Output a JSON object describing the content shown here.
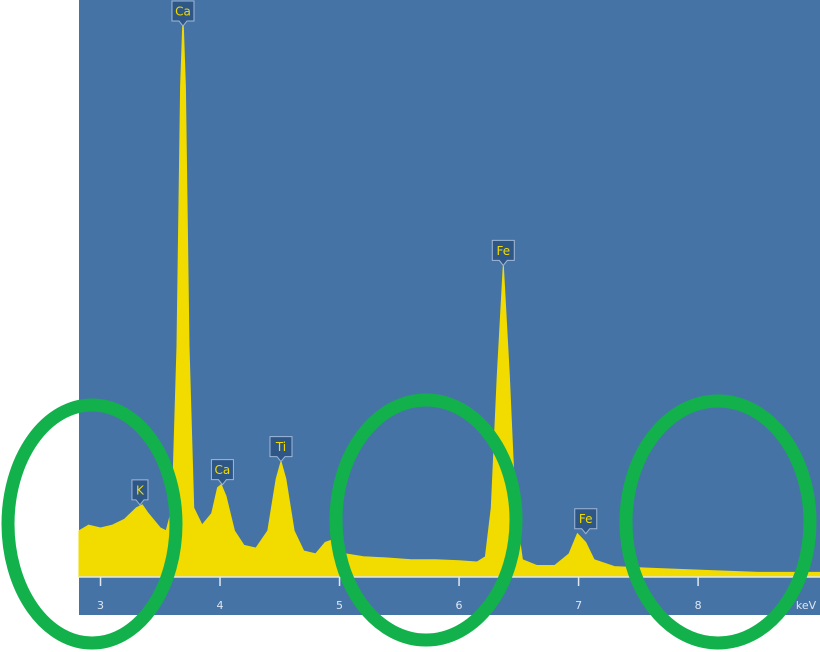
{
  "chart_data": {
    "type": "spectrum",
    "x_label": "keV",
    "xlim": [
      2.82,
      9.02
    ],
    "ylim": [
      0,
      100
    ],
    "xticks": [
      3,
      4,
      5,
      6,
      7,
      8
    ],
    "color": "#f2dc00",
    "background": "#4673a6",
    "x": [
      2.82,
      2.9,
      3.0,
      3.1,
      3.2,
      3.3,
      3.35,
      3.4,
      3.5,
      3.55,
      3.6,
      3.64,
      3.67,
      3.69,
      3.71,
      3.74,
      3.78,
      3.85,
      3.93,
      3.98,
      4.01,
      4.05,
      4.12,
      4.2,
      4.3,
      4.4,
      4.47,
      4.51,
      4.55,
      4.62,
      4.7,
      4.8,
      4.88,
      4.95,
      5.05,
      5.2,
      5.4,
      5.6,
      5.8,
      6.0,
      6.15,
      6.22,
      6.27,
      6.32,
      6.37,
      6.42,
      6.47,
      6.53,
      6.65,
      6.8,
      6.92,
      6.99,
      7.06,
      7.13,
      7.3,
      7.6,
      8.0,
      8.5,
      9.02
    ],
    "values": [
      8,
      9,
      8.5,
      9,
      10,
      12,
      12.5,
      11,
      8.5,
      8,
      12,
      40,
      85,
      97,
      85,
      40,
      12,
      9,
      11,
      15.5,
      16,
      14,
      8,
      5.5,
      5,
      8,
      17,
      20,
      17,
      8,
      4.5,
      4,
      6,
      6.5,
      4,
      3.5,
      3.3,
      3,
      3,
      2.8,
      2.6,
      3.5,
      12,
      35,
      54,
      35,
      12,
      3,
      2,
      2,
      4,
      7.5,
      6,
      3,
      1.8,
      1.5,
      1.2,
      0.8,
      0.8
    ],
    "annotations": [
      {
        "text": "K",
        "x": 3.33,
        "y": 12.5
      },
      {
        "text": "Ca",
        "x": 3.69,
        "y": 97
      },
      {
        "text": "Ca",
        "x": 4.02,
        "y": 16
      },
      {
        "text": "Ti",
        "x": 4.51,
        "y": 20
      },
      {
        "text": "Fe",
        "x": 6.37,
        "y": 54
      },
      {
        "text": "Fe",
        "x": 7.06,
        "y": 7.5
      }
    ]
  }
}
